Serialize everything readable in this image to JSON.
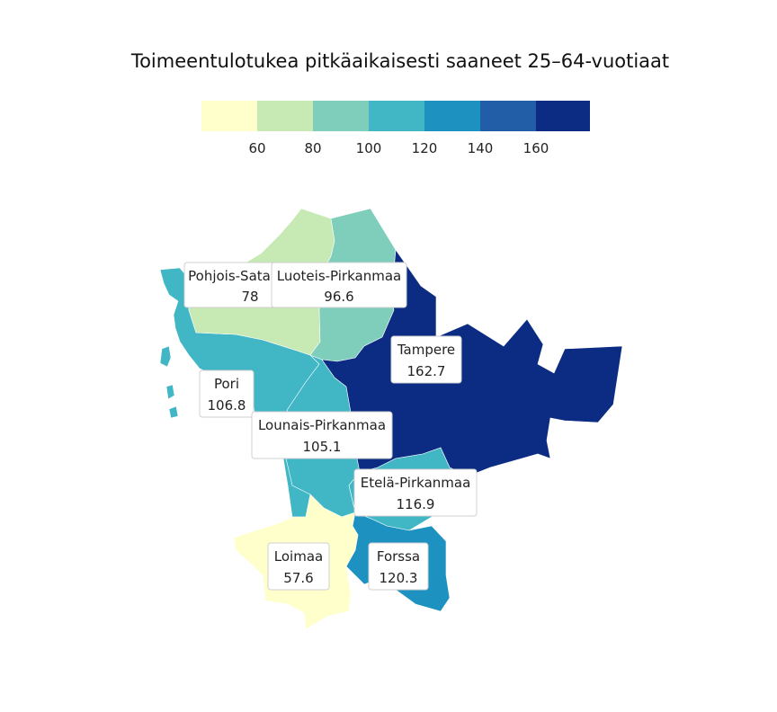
{
  "title": "Toimeentulotukea pitkäaikaisesti saaneet 25–64-vuotiaat",
  "legend": {
    "colors": [
      "#ffffcc",
      "#c7e9b4",
      "#7fcdbb",
      "#41b6c4",
      "#1d91c0",
      "#225ea8",
      "#0c2c84"
    ],
    "breaks": [
      "60",
      "80",
      "100",
      "120",
      "140",
      "160"
    ]
  },
  "regions": [
    {
      "id": "pohjois-satakunta",
      "label": "Pohjois-Sata",
      "value": "78",
      "color": "#c7e9b4"
    },
    {
      "id": "luoteis-pirkanmaa",
      "label": "Luoteis-Pirkanmaa",
      "value": "96.6",
      "color": "#7fcdbb"
    },
    {
      "id": "tampere",
      "label": "Tampere",
      "value": "162.7",
      "color": "#0c2c84"
    },
    {
      "id": "pori",
      "label": "Pori",
      "value": "106.8",
      "color": "#41b6c4"
    },
    {
      "id": "lounais-pirkanmaa",
      "label": "Lounais-Pirkanmaa",
      "value": "105.1",
      "color": "#41b6c4"
    },
    {
      "id": "etela-pirkanmaa",
      "label": "Etelä-Pirkanmaa",
      "value": "116.9",
      "color": "#41b6c4"
    },
    {
      "id": "loimaa",
      "label": "Loimaa",
      "value": "57.6",
      "color": "#ffffcc"
    },
    {
      "id": "forssa",
      "label": "Forssa",
      "value": "120.3",
      "color": "#1d91c0"
    }
  ]
}
